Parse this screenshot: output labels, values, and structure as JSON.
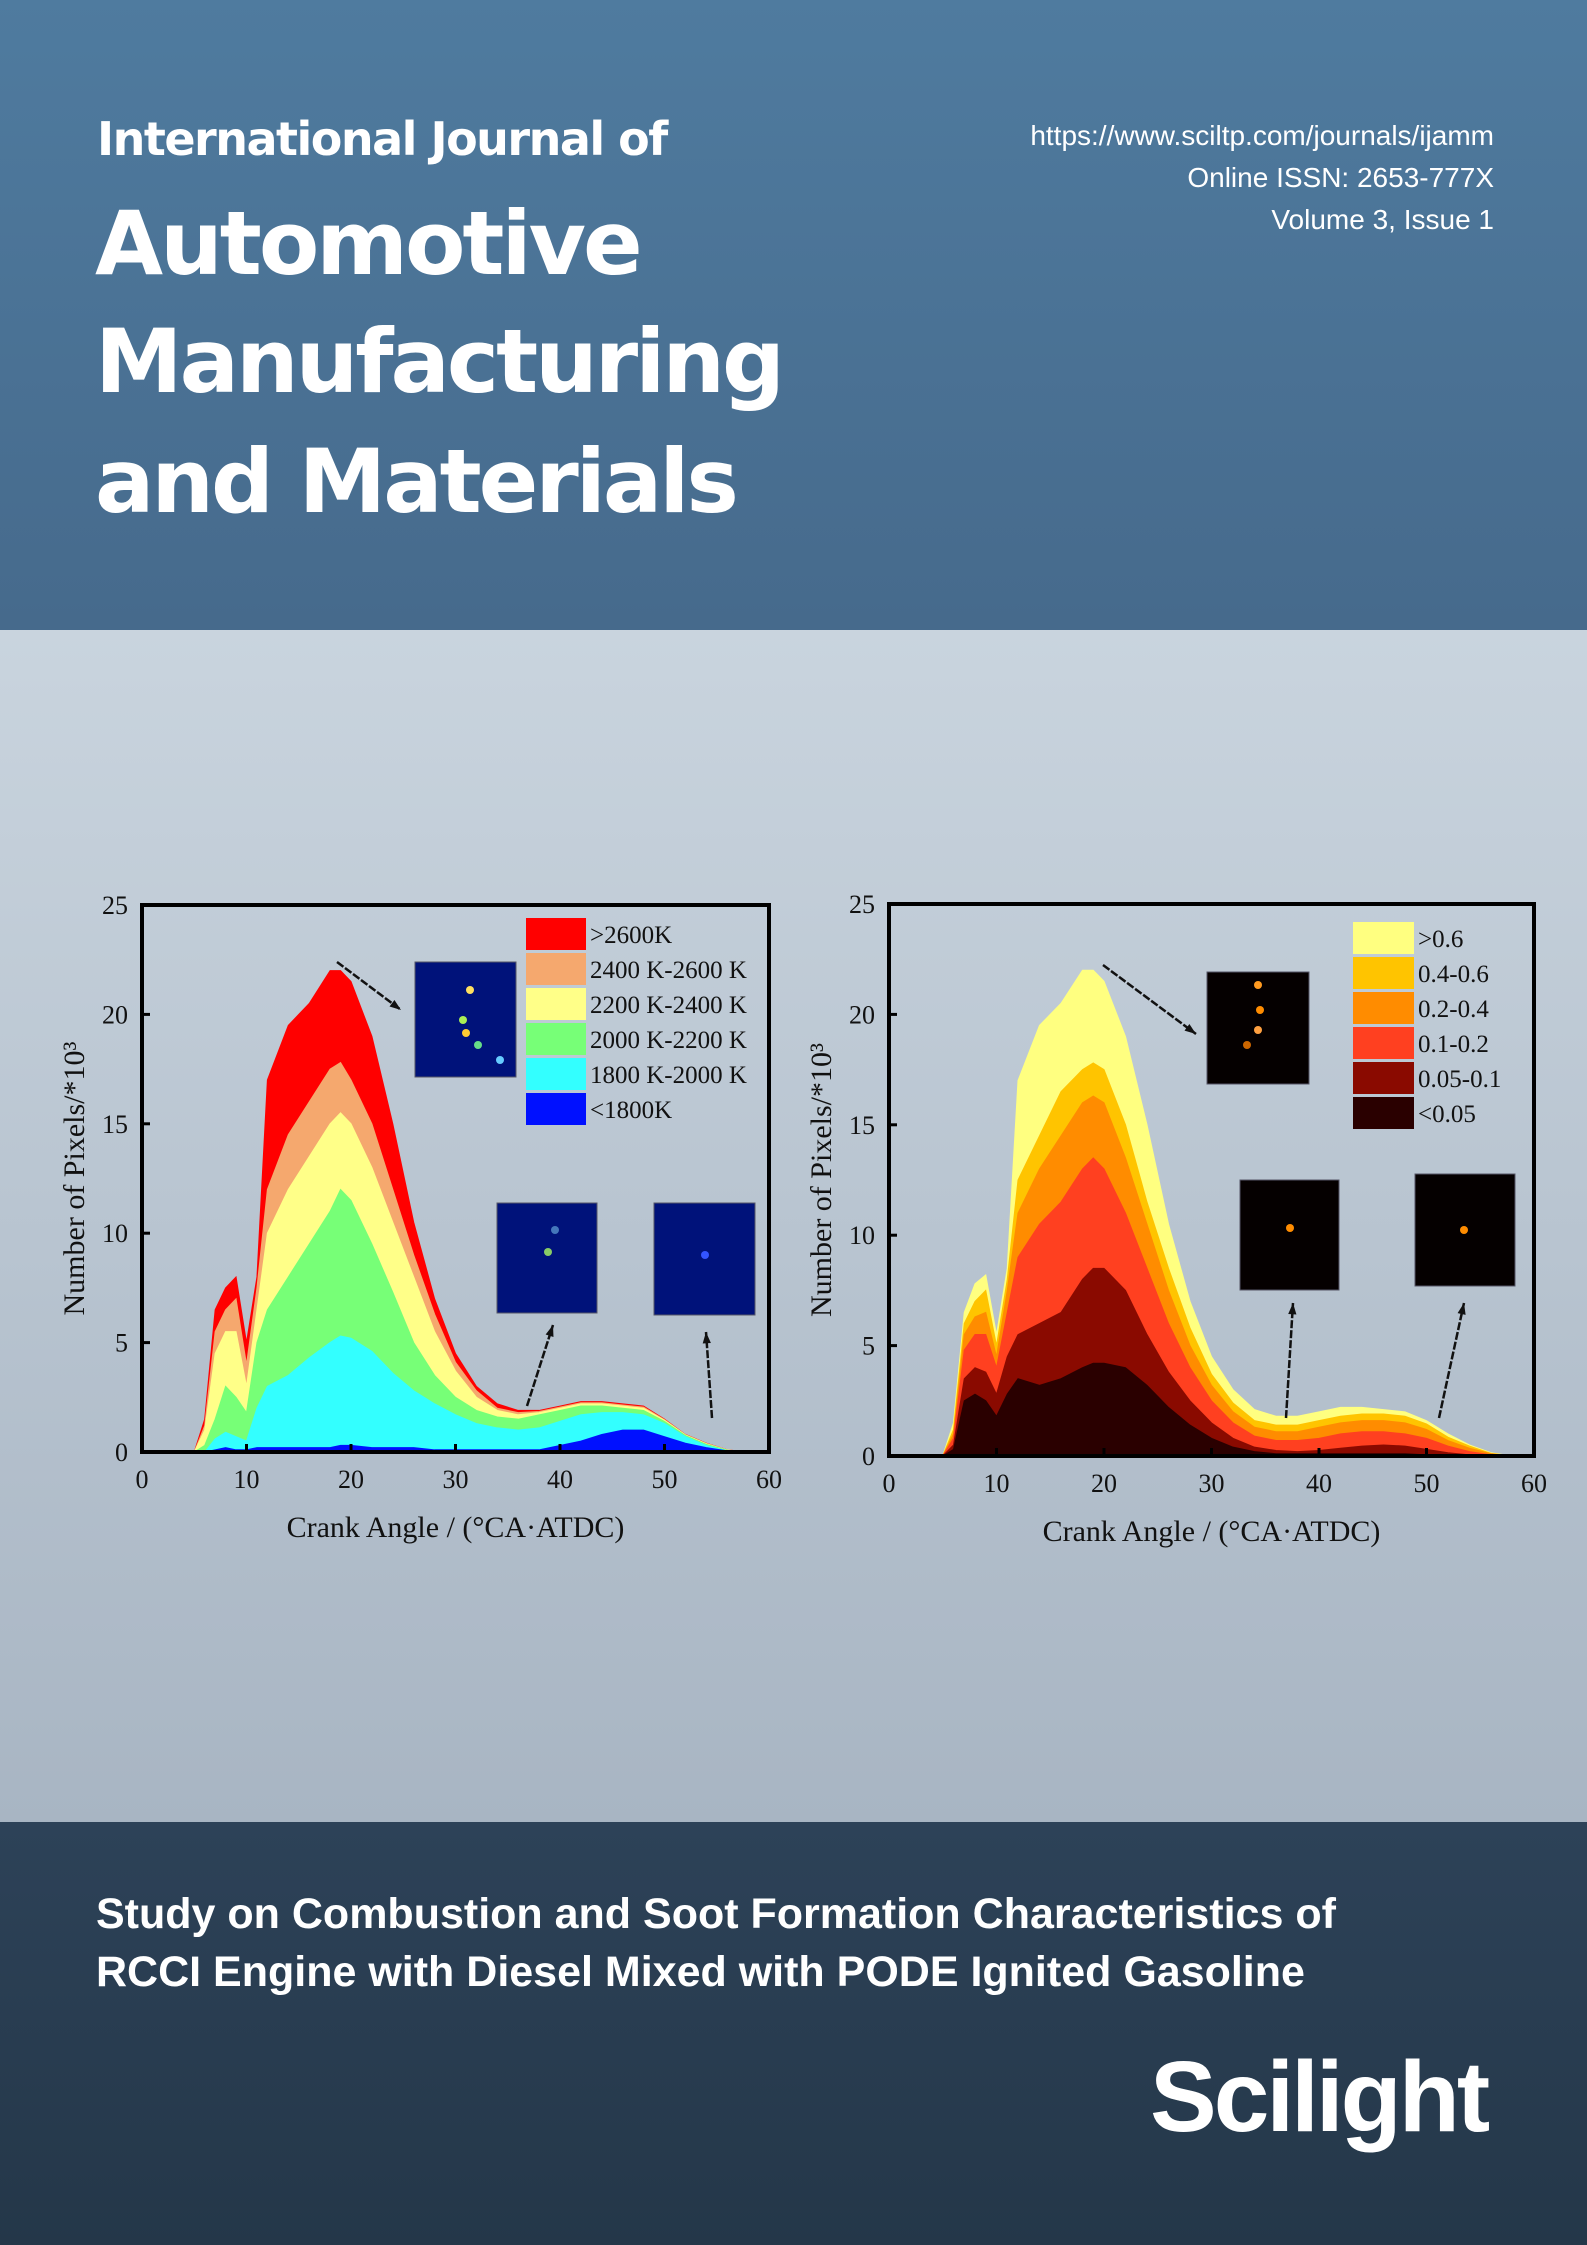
{
  "journal": {
    "line1": "International Journal of",
    "line2": "Automotive",
    "line3": "Manufacturing",
    "line4": "and Materials"
  },
  "meta": {
    "url": "https://www.sciltp.com/journals/ijamm",
    "issn": "Online ISSN: 2653-777X",
    "volume": "Volume 3, Issue 1"
  },
  "article": {
    "title_line1": "Study on Combustion and Soot Formation Characteristics of",
    "title_line2": "RCCI Engine with Diesel Mixed with PODE Ignited Gasoline"
  },
  "publisher": {
    "logo": "Scilight"
  },
  "colors": {
    "header": "#4f7b9f",
    "middle": "#c9d4de",
    "footer": "#2d4258"
  },
  "chart_data": [
    {
      "type": "area",
      "stacked": true,
      "values_are_cumulative": true,
      "xlabel": "Crank Angle / (°CA·ATDC)",
      "ylabel": "Number of Pixels/*10³",
      "xlim": [
        0,
        60
      ],
      "ylim": [
        0,
        25
      ],
      "xticks": [
        "0",
        "10",
        "20",
        "30",
        "40",
        "50",
        "60"
      ],
      "yticks": [
        "0",
        "5",
        "10",
        "15",
        "20",
        "25"
      ],
      "legend_position": "top-right",
      "x": [
        5,
        6,
        7,
        8,
        9,
        10,
        11,
        12,
        14,
        16,
        18,
        19,
        20,
        22,
        24,
        26,
        28,
        30,
        32,
        34,
        36,
        38,
        40,
        42,
        44,
        46,
        48,
        50,
        52,
        54,
        56,
        58
      ],
      "series": [
        {
          "name": "<1800K",
          "color": "#0010ff",
          "values": [
            0,
            0,
            0.1,
            0.2,
            0.1,
            0.1,
            0.2,
            0.2,
            0.2,
            0.2,
            0.2,
            0.3,
            0.3,
            0.2,
            0.2,
            0.2,
            0.1,
            0.1,
            0.1,
            0.1,
            0.1,
            0.1,
            0.3,
            0.5,
            0.8,
            1.0,
            1.0,
            0.7,
            0.4,
            0.2,
            0.05,
            0
          ]
        },
        {
          "name": "1800 K-2000 K",
          "color": "#33ffff",
          "values": [
            0,
            0,
            0.6,
            0.9,
            0.7,
            0.5,
            2,
            3,
            3.5,
            4.3,
            5,
            5.3,
            5.2,
            4.6,
            3.6,
            2.8,
            2.2,
            1.7,
            1.3,
            1.1,
            1.0,
            1.1,
            1.4,
            1.7,
            1.8,
            1.8,
            1.7,
            1.3,
            0.7,
            0.3,
            0.05,
            0
          ]
        },
        {
          "name": "2000 K-2200 K",
          "color": "#77ff77",
          "values": [
            0,
            0.3,
            1.5,
            3,
            2.5,
            1.8,
            5,
            6.5,
            8,
            9.5,
            11,
            12,
            11.5,
            9.5,
            7.3,
            5,
            3.5,
            2.5,
            1.9,
            1.6,
            1.5,
            1.7,
            1.9,
            2.1,
            2.1,
            2.0,
            1.9,
            1.4,
            0.75,
            0.35,
            0.08,
            0
          ]
        },
        {
          "name": "2200 K-2400 K",
          "color": "#ffff88",
          "values": [
            0,
            1,
            4.5,
            5.5,
            5.5,
            3,
            6.5,
            10,
            12,
            13.5,
            15,
            15.5,
            15,
            13,
            10.5,
            8,
            5.5,
            3.7,
            2.5,
            1.9,
            1.7,
            1.8,
            2,
            2.2,
            2.2,
            2.1,
            2,
            1.45,
            0.78,
            0.38,
            0.09,
            0
          ]
        },
        {
          "name": "2400 K-2600 K",
          "color": "#f5a86e",
          "values": [
            0,
            1.2,
            5.5,
            6.5,
            7,
            4,
            7.5,
            12,
            14.5,
            16,
            17.5,
            17.8,
            17,
            15,
            12,
            9,
            6.3,
            4.1,
            2.8,
            2.0,
            1.8,
            1.85,
            2.05,
            2.25,
            2.25,
            2.15,
            2.05,
            1.48,
            0.79,
            0.39,
            0.09,
            0
          ]
        },
        {
          "name": ">2600K",
          "color": "#ff0000",
          "values": [
            0,
            1.5,
            6.5,
            7.5,
            8,
            5,
            8,
            17,
            19.5,
            20.5,
            22,
            22,
            21.5,
            19,
            15,
            10.5,
            7,
            4.5,
            3,
            2.2,
            1.9,
            1.9,
            2.1,
            2.3,
            2.3,
            2.2,
            2.1,
            1.5,
            0.8,
            0.4,
            0.1,
            0
          ]
        }
      ]
    },
    {
      "type": "area",
      "stacked": true,
      "values_are_cumulative": true,
      "xlabel": "Crank Angle / (°CA·ATDC)",
      "ylabel": "Number of Pixels/*10³",
      "xlim": [
        0,
        60
      ],
      "ylim": [
        0,
        25
      ],
      "xticks": [
        "0",
        "10",
        "20",
        "30",
        "40",
        "50",
        "60"
      ],
      "yticks": [
        "0",
        "5",
        "10",
        "15",
        "20",
        "25"
      ],
      "legend_position": "top-right",
      "x": [
        5,
        6,
        7,
        8,
        9,
        10,
        11,
        12,
        14,
        16,
        18,
        19,
        20,
        22,
        24,
        26,
        28,
        30,
        32,
        34,
        36,
        38,
        40,
        42,
        44,
        46,
        48,
        50,
        52,
        54,
        56,
        58
      ],
      "series": [
        {
          "name": "<0.05",
          "color": "#2a0000",
          "values": [
            0,
            0.3,
            2.5,
            2.8,
            2.5,
            1.8,
            2.8,
            3.5,
            3.2,
            3.5,
            4,
            4.2,
            4.2,
            4,
            3.2,
            2.2,
            1.4,
            0.8,
            0.4,
            0.2,
            0.1,
            0.1,
            0.1,
            0.1,
            0.1,
            0.1,
            0.1,
            0.05,
            0.02,
            0,
            0,
            0
          ]
        },
        {
          "name": "0.05-0.1",
          "color": "#8a0a00",
          "values": [
            0,
            0.5,
            3.5,
            4,
            3.8,
            2.8,
            4.5,
            5.5,
            6,
            6.5,
            8,
            8.5,
            8.5,
            7.5,
            5.5,
            3.8,
            2.5,
            1.5,
            0.8,
            0.4,
            0.25,
            0.2,
            0.25,
            0.35,
            0.45,
            0.5,
            0.45,
            0.3,
            0.15,
            0.05,
            0,
            0
          ]
        },
        {
          "name": "0.1-0.2",
          "color": "#ff4020",
          "values": [
            0,
            0.8,
            4.8,
            5.5,
            5.5,
            4,
            6.5,
            9,
            10.5,
            11.5,
            13,
            13.5,
            13,
            11,
            8.5,
            6,
            4,
            2.5,
            1.5,
            0.9,
            0.7,
            0.7,
            0.8,
            1,
            1.1,
            1.1,
            1,
            0.8,
            0.45,
            0.2,
            0.05,
            0
          ]
        },
        {
          "name": "0.2-0.4",
          "color": "#ff8c00",
          "values": [
            0,
            1,
            5.5,
            6.3,
            6.5,
            4.5,
            7.5,
            11,
            13,
            14.5,
            16,
            16.3,
            16,
            13.5,
            10.5,
            7.5,
            5,
            3.2,
            2.0,
            1.3,
            1.1,
            1.1,
            1.3,
            1.5,
            1.6,
            1.6,
            1.5,
            1.2,
            0.7,
            0.35,
            0.1,
            0
          ]
        },
        {
          "name": "0.4-0.6",
          "color": "#ffc400",
          "values": [
            0,
            1.2,
            6,
            7,
            7.5,
            5,
            8,
            12.5,
            14.5,
            16.5,
            17.5,
            17.8,
            17.5,
            15,
            11.5,
            8.5,
            5.8,
            3.7,
            2.4,
            1.6,
            1.4,
            1.4,
            1.6,
            1.8,
            1.9,
            1.9,
            1.8,
            1.45,
            0.85,
            0.45,
            0.12,
            0
          ]
        },
        {
          "name": ">0.6",
          "color": "#ffff80",
          "values": [
            0,
            1.5,
            6.5,
            7.8,
            8.2,
            5.5,
            8.5,
            17,
            19.5,
            20.5,
            22,
            22,
            21.5,
            19,
            15,
            10.5,
            7,
            4.5,
            3,
            2.1,
            1.8,
            1.8,
            2,
            2.2,
            2.2,
            2.1,
            2,
            1.6,
            1,
            0.5,
            0.15,
            0
          ]
        }
      ]
    }
  ]
}
